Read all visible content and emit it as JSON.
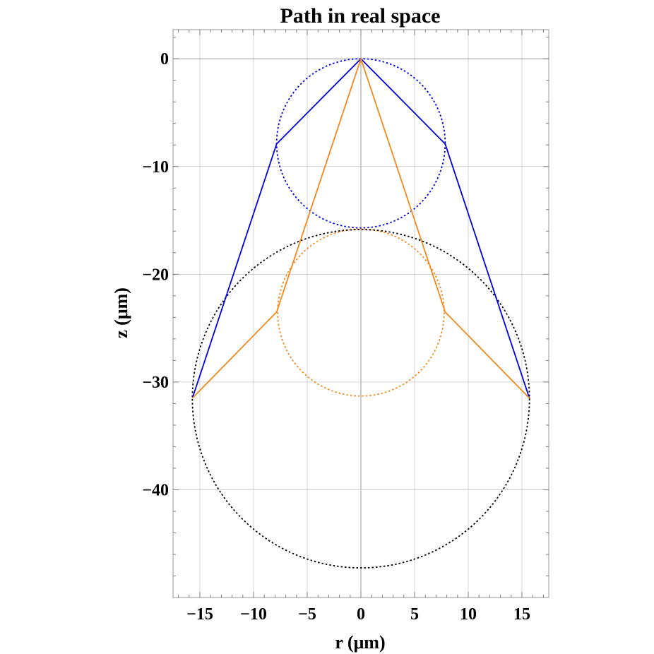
{
  "chart_data": {
    "type": "line",
    "title": "Path in real space",
    "xlabel": "r (μm)",
    "ylabel": "z (μm)",
    "xlim": [
      -17.5,
      17.5
    ],
    "ylim": [
      -50,
      2.7
    ],
    "x_ticks": [
      -15,
      -10,
      -5,
      0,
      5,
      10,
      15
    ],
    "x_tick_labels": [
      "−15",
      "−10",
      "−5",
      "0",
      "5",
      "10",
      "15"
    ],
    "y_ticks": [
      0,
      -10,
      -20,
      -30,
      -40
    ],
    "y_tick_labels": [
      "0",
      "−10",
      "−20",
      "−30",
      "−40"
    ],
    "grid": true,
    "series": [
      {
        "color": "#0000e0",
        "style": "solid",
        "points": [
          [
            -15.7,
            -31.5
          ],
          [
            -7.85,
            -7.9
          ],
          [
            0,
            0
          ],
          [
            7.85,
            -7.9
          ],
          [
            15.7,
            -31.5
          ]
        ]
      },
      {
        "color": "#f08a1e",
        "style": "solid",
        "points": [
          [
            -15.7,
            -31.5
          ],
          [
            -7.85,
            -23.5
          ],
          [
            0,
            0
          ],
          [
            7.85,
            -23.5
          ],
          [
            15.7,
            -31.5
          ]
        ]
      }
    ],
    "circles": [
      {
        "color": "#0000e0",
        "style": "dotted",
        "center": [
          0,
          -7.85
        ],
        "radius": 7.85
      },
      {
        "color": "#f08a1e",
        "style": "dotted",
        "center": [
          0,
          -23.55
        ],
        "radius": 7.75
      },
      {
        "color": "#000000",
        "style": "dotted",
        "center": [
          0,
          -31.55
        ],
        "radius": 15.7
      }
    ]
  }
}
